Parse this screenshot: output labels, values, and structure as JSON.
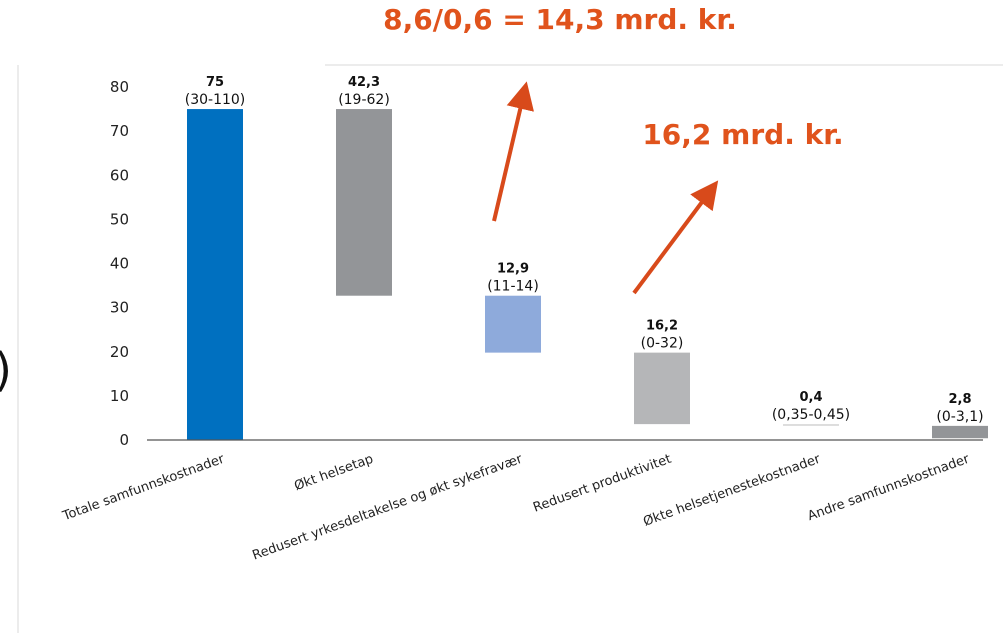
{
  "chart_data": {
    "type": "bar",
    "subtype": "waterfall",
    "categories": [
      "Totale samfunnskostnader",
      "Økt helsetap",
      "Redusert yrkesdeltakelse og økt sykefravær",
      "Redusert produktivitet",
      "Økte helsetjenestekostnader",
      "Andre samfunnskostnader"
    ],
    "bars": [
      {
        "low": 0,
        "high": 75
      },
      {
        "low": 32.7,
        "high": 75
      },
      {
        "low": 19.8,
        "high": 32.7
      },
      {
        "low": 3.6,
        "high": 19.8
      },
      {
        "low": 3.2,
        "high": 3.6
      },
      {
        "low": 0.4,
        "high": 3.2
      }
    ],
    "data_labels": [
      {
        "value": "75",
        "range": "(30-110)"
      },
      {
        "value": "42,3",
        "range": "(19-62)"
      },
      {
        "value": "12,9",
        "range": "(11-14)"
      },
      {
        "value": "16,2",
        "range": "(0-32)"
      },
      {
        "value": "0,4",
        "range": "(0,35-0,45)"
      },
      {
        "value": "2,8",
        "range": "(0-3,1)"
      }
    ],
    "ylim": [
      0,
      80
    ],
    "yticks": [
      "0",
      "10",
      "20",
      "30",
      "40",
      "50",
      "60",
      "70",
      "80"
    ],
    "grid": false,
    "legend": "none",
    "annotations": [
      {
        "text": "8,6/0,6 = 14,3 mrd. kr.",
        "color": "#E0531C"
      },
      {
        "text": "16,2 mrd. kr.",
        "color": "#E0531C"
      }
    ],
    "colors": [
      "#0070C0",
      "#939598",
      "#8EAADB",
      "#B5B6B8",
      "#D9D9D9",
      "#939598"
    ],
    "arrow_color": "#D84A1B"
  }
}
